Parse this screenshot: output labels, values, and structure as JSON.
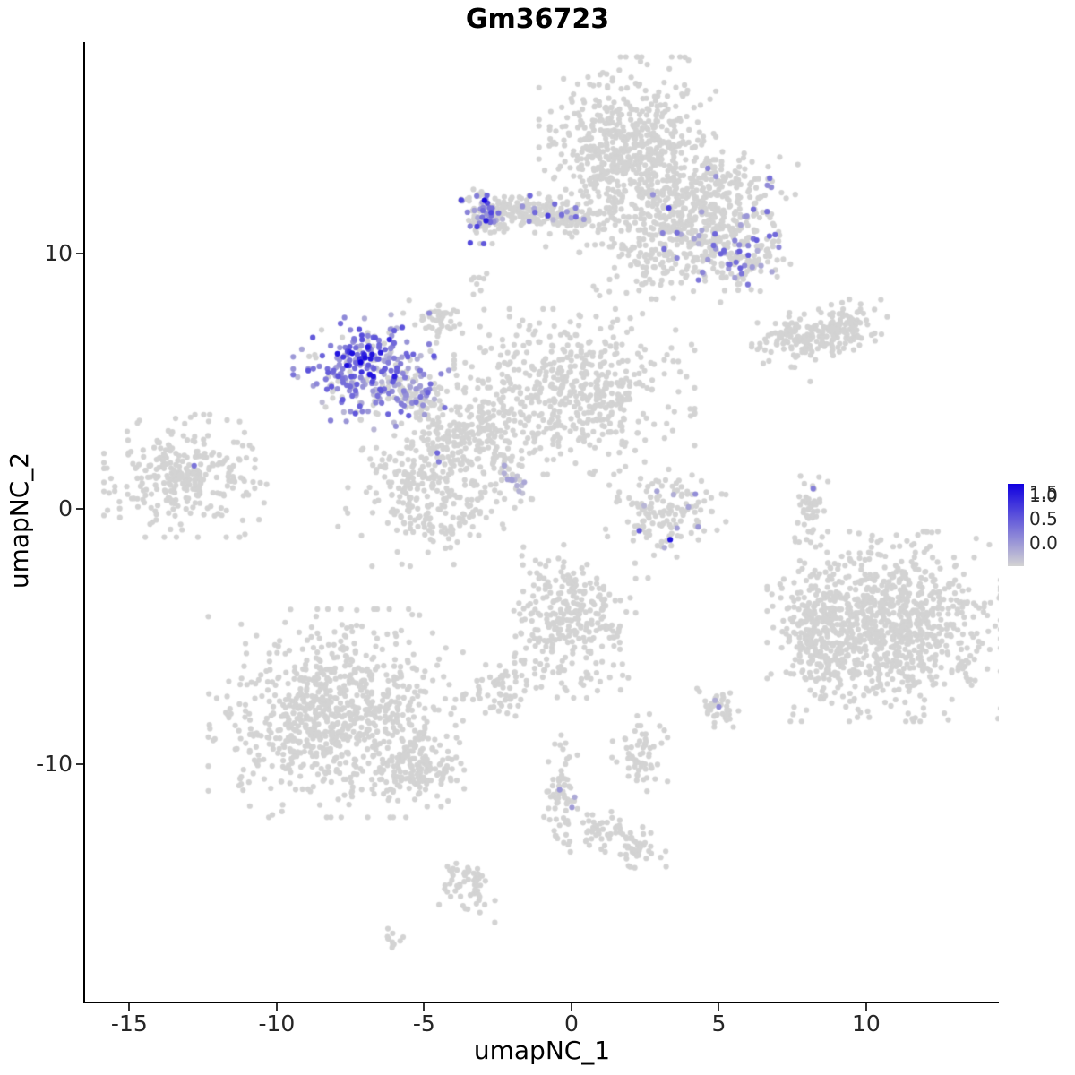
{
  "chart_data": {
    "type": "scatter",
    "title": "Gm36723",
    "xlabel": "umapNC_1",
    "ylabel": "umapNC_2",
    "x_domain": [
      -16.5,
      14.5
    ],
    "y_domain": [
      -19.3,
      18.3
    ],
    "x_ticks": [
      -15,
      -10,
      -5,
      0,
      5,
      10
    ],
    "y_ticks": [
      -10,
      0,
      10
    ],
    "grid": false,
    "legend": {
      "position": "right",
      "labels": [
        "1.5",
        "1.0",
        "0.5",
        "0.0"
      ],
      "values": [
        1.5,
        1.0,
        0.5,
        0.0
      ]
    },
    "color_scale": {
      "min": 0,
      "max": 1.75,
      "low": "#D3D3D3",
      "high": "#1000E0"
    },
    "point_radius_px": 3.1,
    "clusters": [
      {
        "name": "top-core",
        "type": "gauss",
        "cx": 1.9,
        "cy": 14.0,
        "sx": 1.25,
        "sy": 1.55,
        "n": 650
      },
      {
        "name": "top-right-arm",
        "type": "gauss",
        "cx": 4.6,
        "cy": 12.0,
        "sx": 1.3,
        "sy": 1.0,
        "n": 380,
        "f": 0.02,
        "v": [
          0.3,
          0.9
        ]
      },
      {
        "name": "top-right-lower",
        "type": "gauss",
        "cx": 5.5,
        "cy": 10.1,
        "sx": 0.8,
        "sy": 0.65,
        "n": 160,
        "f": 0.3,
        "v": [
          0.2,
          1.0
        ]
      },
      {
        "name": "top-band",
        "type": "line",
        "x1": -3.2,
        "y1": 11.7,
        "x2": 0.8,
        "y2": 11.5,
        "jitter": 0.35,
        "n": 230,
        "f": 0.1,
        "v": [
          0.2,
          0.9
        ]
      },
      {
        "name": "band-left-knot",
        "type": "gauss",
        "cx": -2.9,
        "cy": 11.6,
        "sx": 0.35,
        "sy": 0.5,
        "n": 70,
        "f": 0.3,
        "v": [
          0.3,
          1.2
        ]
      },
      {
        "name": "below-top-sparse",
        "type": "gauss",
        "cx": 2.9,
        "cy": 9.7,
        "sx": 1.1,
        "sy": 0.9,
        "n": 120
      },
      {
        "name": "right-mid-strip",
        "type": "line",
        "x1": 6.8,
        "y1": 6.4,
        "x2": 10.0,
        "y2": 7.3,
        "jitter": 0.45,
        "n": 230
      },
      {
        "name": "purple-main",
        "type": "gauss",
        "cx": -6.8,
        "cy": 5.4,
        "sx": 1.1,
        "sy": 0.95,
        "n": 270,
        "f": 0.75,
        "v": [
          0.15,
          1.1
        ]
      },
      {
        "name": "purple-core-dark",
        "type": "gauss",
        "cx": -7.2,
        "cy": 5.85,
        "sx": 0.45,
        "sy": 0.4,
        "n": 30,
        "f": 1.0,
        "v": [
          0.8,
          1.75
        ]
      },
      {
        "name": "purple-trail",
        "type": "line",
        "x1": -6.0,
        "y1": 4.9,
        "x2": -4.9,
        "y2": 3.9,
        "jitter": 0.3,
        "n": 70,
        "f": 0.4,
        "v": [
          0.2,
          0.8
        ]
      },
      {
        "name": "central-main",
        "type": "gauss",
        "cx": 0.1,
        "cy": 4.6,
        "sx": 1.7,
        "sy": 1.35,
        "n": 520
      },
      {
        "name": "central-west",
        "type": "gauss",
        "cx": -4.8,
        "cy": 1.0,
        "sx": 1.3,
        "sy": 1.35,
        "n": 340
      },
      {
        "name": "central-neck",
        "type": "gauss",
        "cx": -3.2,
        "cy": 3.3,
        "sx": 0.95,
        "sy": 0.9,
        "n": 160
      },
      {
        "name": "central-streak",
        "type": "line",
        "x1": -2.7,
        "y1": 1.95,
        "x2": -1.35,
        "y2": 0.45,
        "jitter": 0.12,
        "n": 26,
        "f": 0.5,
        "v": [
          0.15,
          0.45
        ]
      },
      {
        "name": "far-left",
        "type": "gauss",
        "cx": -13.1,
        "cy": 1.3,
        "sx": 1.15,
        "sy": 1.0,
        "n": 300
      },
      {
        "name": "midright-small",
        "type": "gauss",
        "cx": 3.2,
        "cy": -0.2,
        "sx": 0.85,
        "sy": 0.8,
        "n": 140,
        "f": 0.08,
        "v": [
          0.2,
          0.6
        ]
      },
      {
        "name": "right-string",
        "type": "gauss",
        "cx": 8.1,
        "cy": 0.1,
        "sx": 0.25,
        "sy": 0.75,
        "n": 45
      },
      {
        "name": "bottom-right-big",
        "type": "gauss",
        "cx": 10.6,
        "cy": -4.6,
        "sx": 1.65,
        "sy": 1.55,
        "n": 950
      },
      {
        "name": "bottom-right-west",
        "type": "gauss",
        "cx": 8.3,
        "cy": -5.0,
        "sx": 0.55,
        "sy": 1.2,
        "n": 160
      },
      {
        "name": "bottom-mid",
        "type": "gauss",
        "cx": -0.1,
        "cy": -4.4,
        "sx": 0.95,
        "sy": 1.25,
        "n": 300
      },
      {
        "name": "bottom-left-big",
        "type": "gauss",
        "cx": -8.0,
        "cy": -8.0,
        "sx": 1.8,
        "sy": 1.7,
        "n": 820
      },
      {
        "name": "bottom-left-tail",
        "type": "gauss",
        "cx": -5.2,
        "cy": -10.1,
        "sx": 0.65,
        "sy": 0.65,
        "n": 130
      },
      {
        "name": "small-center-left",
        "type": "gauss",
        "cx": -2.4,
        "cy": -7.1,
        "sx": 0.5,
        "sy": 0.55,
        "n": 60
      },
      {
        "name": "small-right-low",
        "type": "gauss",
        "cx": 4.9,
        "cy": -7.7,
        "sx": 0.32,
        "sy": 0.35,
        "n": 40,
        "f": 0.05,
        "v": [
          0.3,
          0.6
        ]
      },
      {
        "name": "small-mid-low",
        "type": "gauss",
        "cx": 2.3,
        "cy": -9.5,
        "sx": 0.4,
        "sy": 0.7,
        "n": 60
      },
      {
        "name": "bottom-string",
        "type": "gauss",
        "cx": -0.35,
        "cy": -11.2,
        "sx": 0.25,
        "sy": 1.2,
        "n": 70,
        "f": 0.03,
        "v": [
          0.3,
          0.5
        ]
      },
      {
        "name": "bottom-small-o",
        "type": "gauss",
        "cx": 1.05,
        "cy": -12.7,
        "sx": 0.45,
        "sy": 0.35,
        "n": 45
      },
      {
        "name": "bottom-small-p",
        "type": "gauss",
        "cx": 2.3,
        "cy": -13.3,
        "sx": 0.38,
        "sy": 0.35,
        "n": 40
      },
      {
        "name": "bottom-small-q",
        "type": "gauss",
        "cx": -3.6,
        "cy": -14.8,
        "sx": 0.45,
        "sy": 0.5,
        "n": 55
      },
      {
        "name": "bottom-tiny-r",
        "type": "gauss",
        "cx": -6.1,
        "cy": -16.8,
        "sx": 0.25,
        "sy": 0.2,
        "n": 12
      },
      {
        "name": "small-above-central",
        "type": "gauss",
        "cx": -4.5,
        "cy": 7.5,
        "sx": 0.42,
        "sy": 0.3,
        "n": 40
      },
      {
        "name": "tiny-t",
        "type": "gauss",
        "cx": -3.0,
        "cy": 8.9,
        "sx": 0.2,
        "sy": 0.25,
        "n": 8
      }
    ],
    "extra_points": [
      [
        8.1,
        5.0
      ],
      [
        2.5,
        2.7
      ],
      [
        6.1,
        8.6
      ],
      [
        -2.6,
        -16.2
      ],
      [
        2.6,
        -2.7
      ]
    ],
    "highlight_points": [
      {
        "x": -2.95,
        "y": 12.1,
        "v": 1.7
      },
      {
        "x": -2.9,
        "y": 11.3,
        "v": 1.5
      },
      {
        "x": -0.8,
        "y": 11.5,
        "v": 1.2
      },
      {
        "x": 0.15,
        "y": 11.45,
        "v": 0.9
      },
      {
        "x": 3.3,
        "y": 11.8,
        "v": 1.2
      },
      {
        "x": 5.7,
        "y": 10.1,
        "v": 1.0
      },
      {
        "x": -6.0,
        "y": 5.2,
        "v": 1.5
      },
      {
        "x": -7.15,
        "y": 5.75,
        "v": 1.75
      },
      {
        "x": -4.55,
        "y": 2.2,
        "v": 0.9
      },
      {
        "x": -4.5,
        "y": 1.85,
        "v": 0.7
      },
      {
        "x": -12.8,
        "y": 1.7,
        "v": 0.8
      },
      {
        "x": 2.3,
        "y": -0.85,
        "v": 1.0
      },
      {
        "x": 3.35,
        "y": -1.2,
        "v": 1.6
      },
      {
        "x": 2.9,
        "y": 0.7,
        "v": 0.4
      },
      {
        "x": 4.3,
        "y": -0.7,
        "v": 0.5
      },
      {
        "x": 8.2,
        "y": 0.8,
        "v": 0.7
      },
      {
        "x": 5.0,
        "y": -7.75,
        "v": 0.6
      },
      {
        "x": -0.4,
        "y": -11.0,
        "v": 0.5
      }
    ]
  }
}
